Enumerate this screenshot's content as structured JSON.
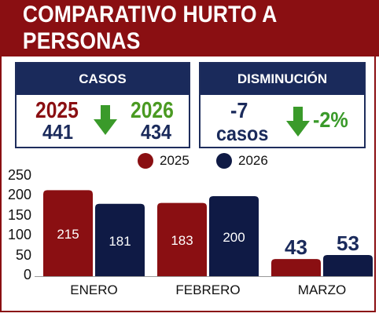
{
  "title": "COMPARATIVO HURTO A PERSONAS",
  "cards": {
    "casos": {
      "header": "CASOS",
      "year_a": "2025",
      "value_a": "441",
      "year_b": "2026",
      "value_b": "434",
      "trend_icon": "arrow-down-icon"
    },
    "disminucion": {
      "header": "DISMINUCIÓN",
      "count": "-7",
      "count_unit": "casos",
      "percent": "-2%",
      "trend_icon": "arrow-down-icon"
    }
  },
  "colors": {
    "primary_red": "#8a0f12",
    "navy": "#1a2a5b",
    "green": "#3a9a2a"
  },
  "chart_data": {
    "type": "bar",
    "categories": [
      "ENERO",
      "FEBRERO",
      "MARZO"
    ],
    "series": [
      {
        "name": "2025",
        "values": [
          215,
          183,
          43
        ],
        "color": "#8a0f12"
      },
      {
        "name": "2026",
        "values": [
          181,
          200,
          53
        ],
        "color": "#0f1a45"
      }
    ],
    "yticks": [
      0,
      50,
      100,
      150,
      200,
      250
    ],
    "ylim": [
      0,
      250
    ],
    "grid": false,
    "legend": "top-right",
    "title": "",
    "xlabel": "",
    "ylabel": ""
  }
}
